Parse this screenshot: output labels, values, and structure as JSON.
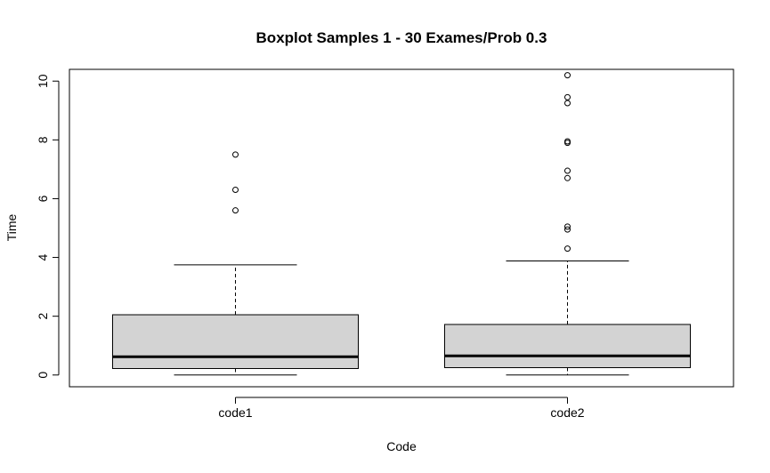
{
  "chart_data": {
    "type": "boxplot",
    "title": "Boxplot Samples 1 - 30 Exames/Prob 0.3",
    "xlabel": "Code",
    "ylabel": "Time",
    "ylim": [
      -0.4,
      10.4
    ],
    "yticks": [
      0,
      2,
      4,
      6,
      8,
      10
    ],
    "grid": false,
    "legend": "none",
    "box_fill": "#d3d3d3",
    "categories": [
      "code1",
      "code2"
    ],
    "series": [
      {
        "category": "code1",
        "min": 0.0,
        "q1": 0.22,
        "median": 0.62,
        "q3": 2.05,
        "max": 3.75,
        "outliers": [
          5.6,
          6.3,
          7.5
        ]
      },
      {
        "category": "code2",
        "min": 0.0,
        "q1": 0.25,
        "median": 0.65,
        "q3": 1.72,
        "max": 3.88,
        "outliers": [
          4.3,
          4.95,
          5.05,
          6.7,
          6.95,
          7.9,
          7.95,
          9.25,
          9.45,
          10.2
        ]
      }
    ]
  }
}
